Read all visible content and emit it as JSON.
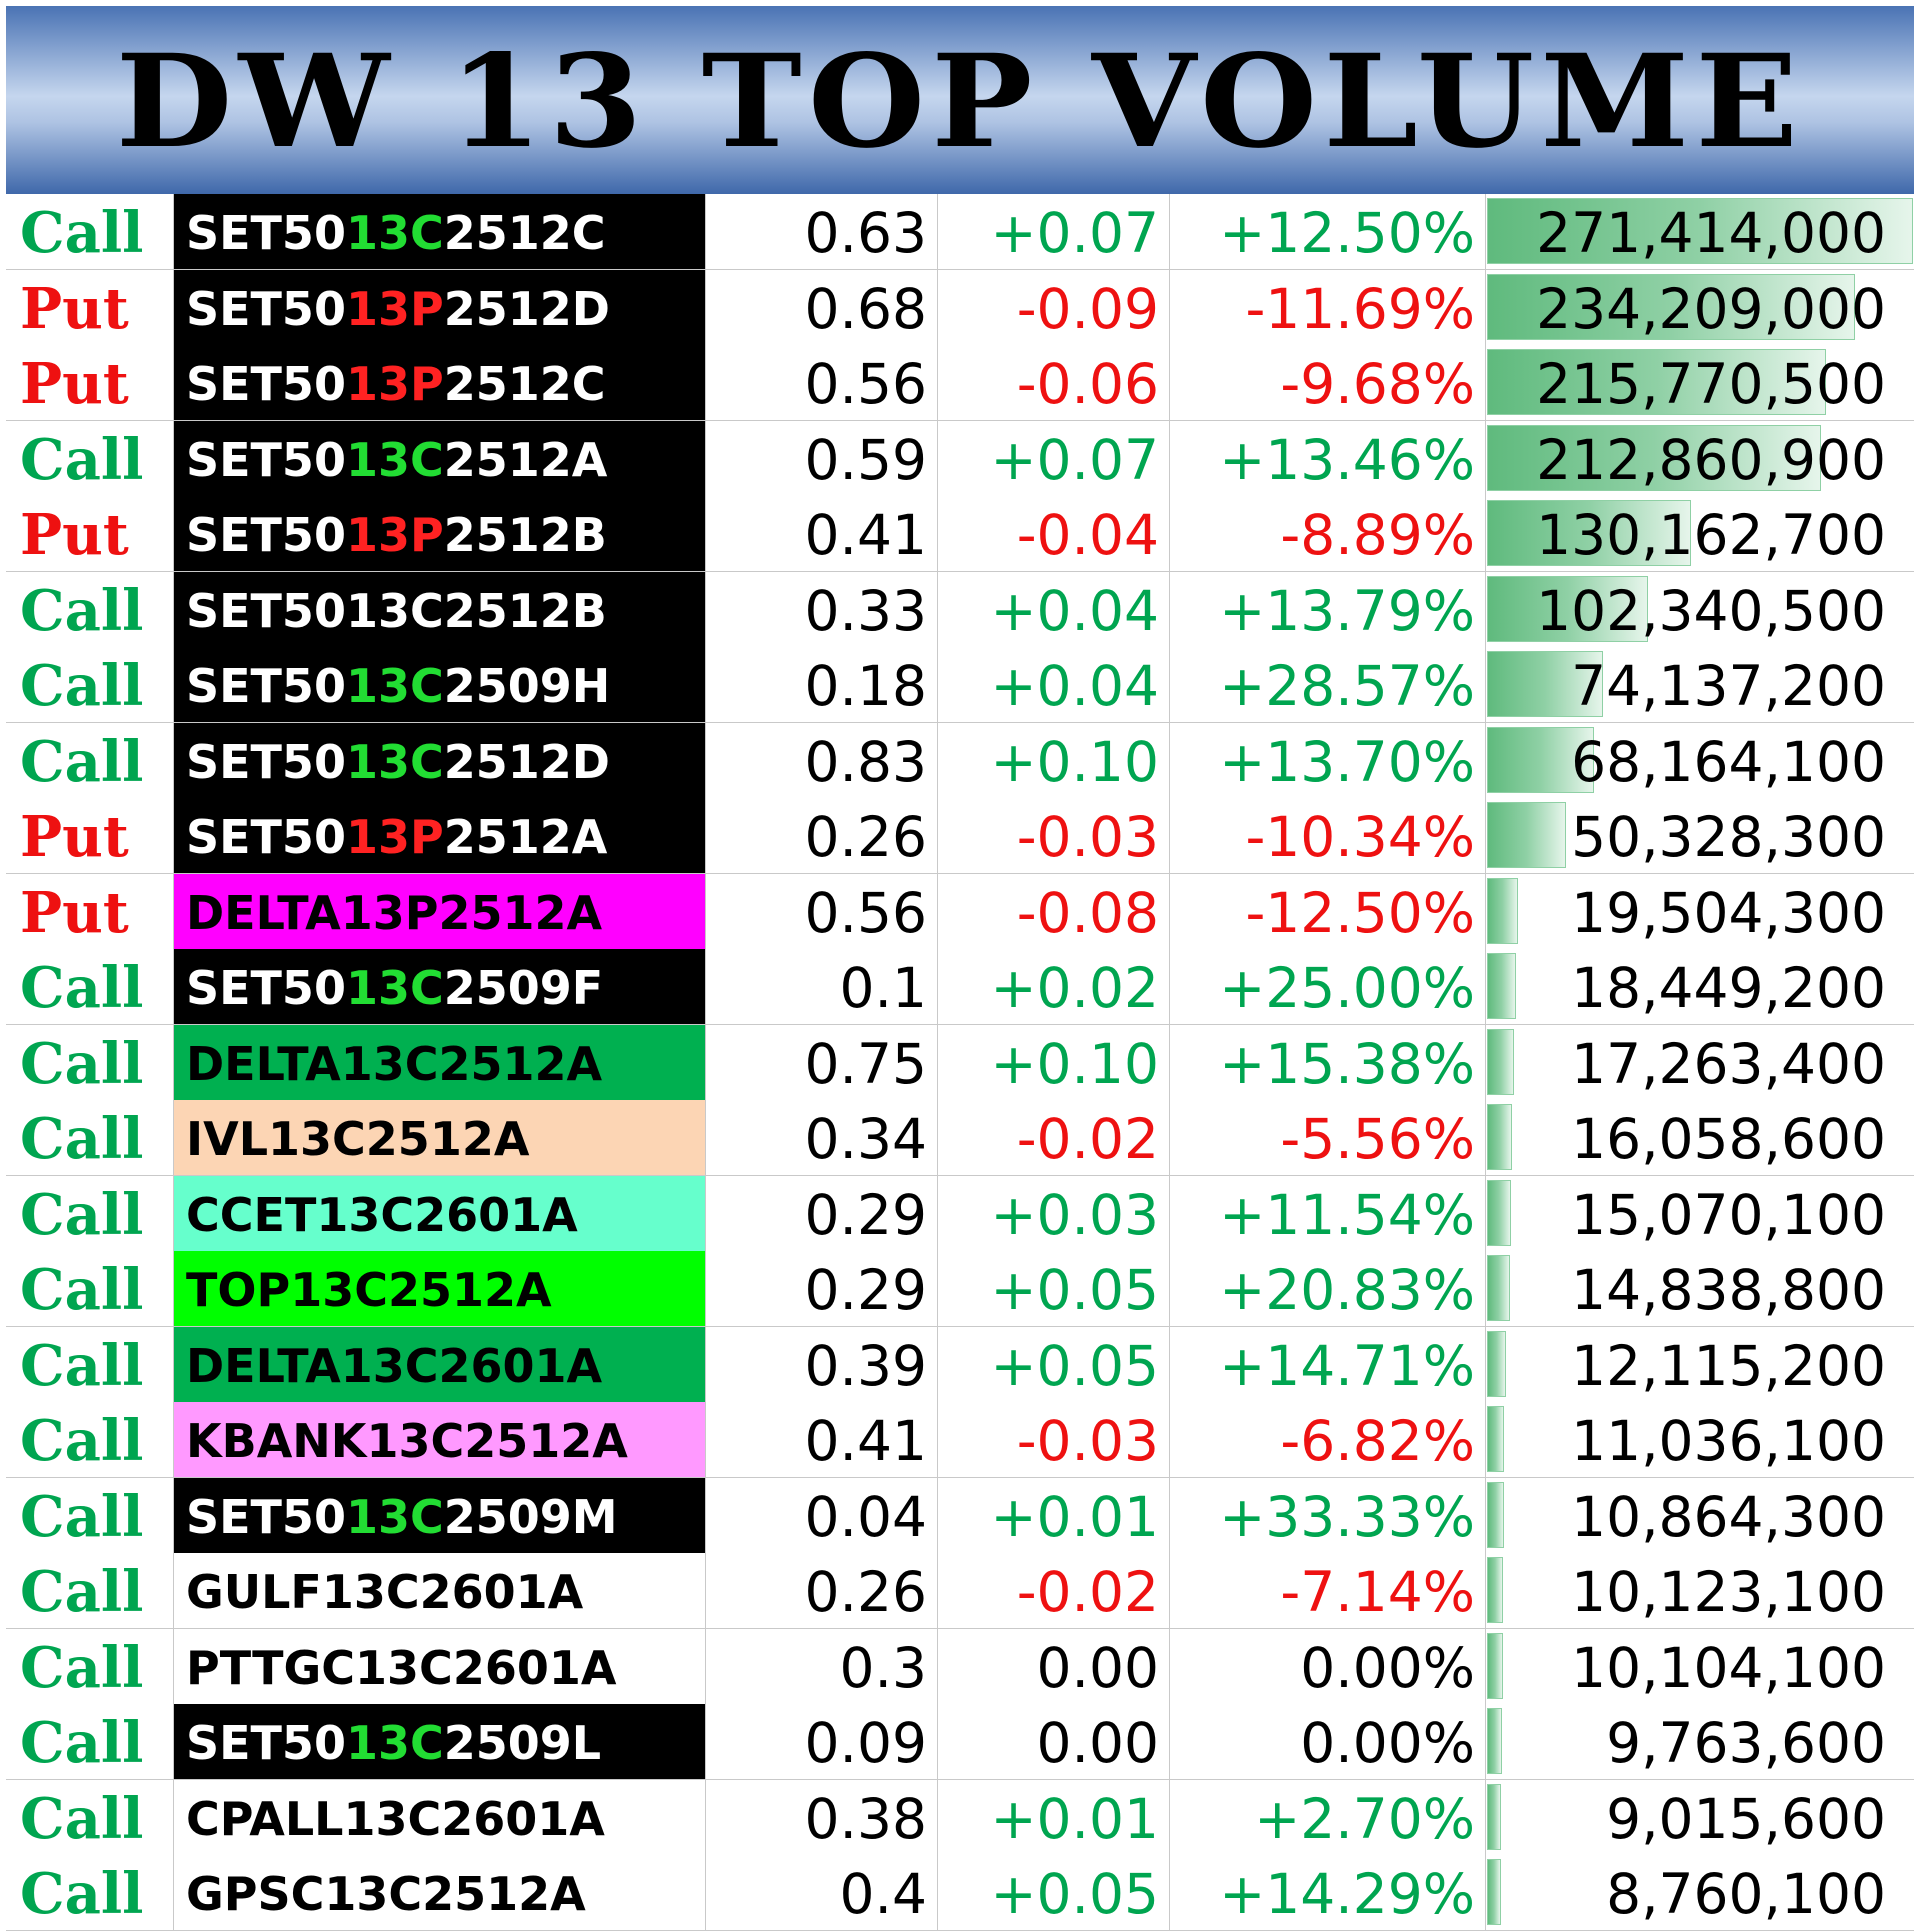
{
  "header": {
    "title": "DW 13 TOP VOLUME"
  },
  "colors": {
    "call": "#00a550",
    "put": "#ee1111",
    "positive": "#00a550",
    "negative": "#ee1111",
    "neutral": "#000000",
    "ticker_highlight_call": "#22dd33",
    "ticker_highlight_put": "#ff2222"
  },
  "rows": [
    {
      "type": "Call",
      "name_pre": "SET50",
      "name_mid": "13C",
      "name_post": "2512C",
      "name_bg": "#000000",
      "name_color": "#ffffff",
      "mid_color": "#22dd33",
      "price": "0.63",
      "change": "+0.07",
      "pct": "+12.50%",
      "dir": "pos",
      "volume": "271,414,000",
      "vol": 271414000
    },
    {
      "type": "Put",
      "name_pre": "SET50",
      "name_mid": "13P",
      "name_post": "2512D",
      "name_bg": "#000000",
      "name_color": "#ffffff",
      "mid_color": "#ff2222",
      "price": "0.68",
      "change": "-0.09",
      "pct": "-11.69%",
      "dir": "neg",
      "volume": "234,209,000",
      "vol": 234209000
    },
    {
      "type": "Put",
      "name_pre": "SET50",
      "name_mid": "13P",
      "name_post": "2512C",
      "name_bg": "#000000",
      "name_color": "#ffffff",
      "mid_color": "#ff2222",
      "price": "0.56",
      "change": "-0.06",
      "pct": "-9.68%",
      "dir": "neg",
      "volume": "215,770,500",
      "vol": 215770500
    },
    {
      "type": "Call",
      "name_pre": "SET50",
      "name_mid": "13C",
      "name_post": "2512A",
      "name_bg": "#000000",
      "name_color": "#ffffff",
      "mid_color": "#22dd33",
      "price": "0.59",
      "change": "+0.07",
      "pct": "+13.46%",
      "dir": "pos",
      "volume": "212,860,900",
      "vol": 212860900
    },
    {
      "type": "Put",
      "name_pre": "SET50",
      "name_mid": "13P",
      "name_post": "2512B",
      "name_bg": "#000000",
      "name_color": "#ffffff",
      "mid_color": "#ff2222",
      "price": "0.41",
      "change": "-0.04",
      "pct": "-8.89%",
      "dir": "neg",
      "volume": "130,162,700",
      "vol": 130162700
    },
    {
      "type": "Call",
      "name_pre": "SET5013C2512B",
      "name_mid": "",
      "name_post": "",
      "name_bg": "#000000",
      "name_color": "#ffffff",
      "mid_color": "#ffffff",
      "price": "0.33",
      "change": "+0.04",
      "pct": "+13.79%",
      "dir": "pos",
      "volume": "102,340,500",
      "vol": 102340500
    },
    {
      "type": "Call",
      "name_pre": "SET50",
      "name_mid": "13C",
      "name_post": "2509H",
      "name_bg": "#000000",
      "name_color": "#ffffff",
      "mid_color": "#22dd33",
      "price": "0.18",
      "change": "+0.04",
      "pct": "+28.57%",
      "dir": "pos",
      "volume": "74,137,200",
      "vol": 74137200
    },
    {
      "type": "Call",
      "name_pre": "SET50",
      "name_mid": "13C",
      "name_post": "2512D",
      "name_bg": "#000000",
      "name_color": "#ffffff",
      "mid_color": "#22dd33",
      "price": "0.83",
      "change": "+0.10",
      "pct": "+13.70%",
      "dir": "pos",
      "volume": "68,164,100",
      "vol": 68164100
    },
    {
      "type": "Put",
      "name_pre": "SET50",
      "name_mid": "13P",
      "name_post": "2512A",
      "name_bg": "#000000",
      "name_color": "#ffffff",
      "mid_color": "#ff2222",
      "price": "0.26",
      "change": "-0.03",
      "pct": "-10.34%",
      "dir": "neg",
      "volume": "50,328,300",
      "vol": 50328300
    },
    {
      "type": "Put",
      "name_pre": "DELTA13P2512A",
      "name_mid": "",
      "name_post": "",
      "name_bg": "#ff00ff",
      "name_color": "#000000",
      "mid_color": "#000000",
      "price": "0.56",
      "change": "-0.08",
      "pct": "-12.50%",
      "dir": "neg",
      "volume": "19,504,300",
      "vol": 19504300
    },
    {
      "type": "Call",
      "name_pre": "SET50",
      "name_mid": "13C",
      "name_post": "2509F",
      "name_bg": "#000000",
      "name_color": "#ffffff",
      "mid_color": "#22dd33",
      "price": "0.1",
      "change": "+0.02",
      "pct": "+25.00%",
      "dir": "pos",
      "volume": "18,449,200",
      "vol": 18449200
    },
    {
      "type": "Call",
      "name_pre": "DELTA13C2512A",
      "name_mid": "",
      "name_post": "",
      "name_bg": "#00b050",
      "name_color": "#000000",
      "mid_color": "#000000",
      "price": "0.75",
      "change": "+0.10",
      "pct": "+15.38%",
      "dir": "pos",
      "volume": "17,263,400",
      "vol": 17263400
    },
    {
      "type": "Call",
      "name_pre": "IVL13C2512A",
      "name_mid": "",
      "name_post": "",
      "name_bg": "#fcd5b4",
      "name_color": "#000000",
      "mid_color": "#000000",
      "price": "0.34",
      "change": "-0.02",
      "pct": "-5.56%",
      "dir": "neg",
      "volume": "16,058,600",
      "vol": 16058600
    },
    {
      "type": "Call",
      "name_pre": "CCET13C2601A",
      "name_mid": "",
      "name_post": "",
      "name_bg": "#66ffcc",
      "name_color": "#000000",
      "mid_color": "#000000",
      "price": "0.29",
      "change": "+0.03",
      "pct": "+11.54%",
      "dir": "pos",
      "volume": "15,070,100",
      "vol": 15070100
    },
    {
      "type": "Call",
      "name_pre": "TOP13C2512A",
      "name_mid": "",
      "name_post": "",
      "name_bg": "#00ff00",
      "name_color": "#000000",
      "mid_color": "#000000",
      "price": "0.29",
      "change": "+0.05",
      "pct": "+20.83%",
      "dir": "pos",
      "volume": "14,838,800",
      "vol": 14838800
    },
    {
      "type": "Call",
      "name_pre": "DELTA13C2601A",
      "name_mid": "",
      "name_post": "",
      "name_bg": "#00b050",
      "name_color": "#000000",
      "mid_color": "#000000",
      "price": "0.39",
      "change": "+0.05",
      "pct": "+14.71%",
      "dir": "pos",
      "volume": "12,115,200",
      "vol": 12115200
    },
    {
      "type": "Call",
      "name_pre": "KBANK13C2512A",
      "name_mid": "",
      "name_post": "",
      "name_bg": "#ff99ff",
      "name_color": "#000000",
      "mid_color": "#000000",
      "price": "0.41",
      "change": "-0.03",
      "pct": "-6.82%",
      "dir": "neg",
      "volume": "11,036,100",
      "vol": 11036100
    },
    {
      "type": "Call",
      "name_pre": "SET50",
      "name_mid": "13C",
      "name_post": "2509M",
      "name_bg": "#000000",
      "name_color": "#ffffff",
      "mid_color": "#22dd33",
      "price": "0.04",
      "change": "+0.01",
      "pct": "+33.33%",
      "dir": "pos",
      "volume": "10,864,300",
      "vol": 10864300
    },
    {
      "type": "Call",
      "name_pre": "GULF13C2601A",
      "name_mid": "",
      "name_post": "",
      "name_bg": "#ffffff",
      "name_color": "#000000",
      "mid_color": "#000000",
      "price": "0.26",
      "change": "-0.02",
      "pct": "-7.14%",
      "dir": "neg",
      "volume": "10,123,100",
      "vol": 10123100
    },
    {
      "type": "Call",
      "name_pre": "PTTGC13C2601A",
      "name_mid": "",
      "name_post": "",
      "name_bg": "#ffffff",
      "name_color": "#000000",
      "mid_color": "#000000",
      "price": "0.3",
      "change": "0.00",
      "pct": "0.00%",
      "dir": "zero",
      "volume": "10,104,100",
      "vol": 10104100
    },
    {
      "type": "Call",
      "name_pre": "SET50",
      "name_mid": "13C",
      "name_post": "2509L",
      "name_bg": "#000000",
      "name_color": "#ffffff",
      "mid_color": "#22dd33",
      "price": "0.09",
      "change": "0.00",
      "pct": "0.00%",
      "dir": "zero",
      "volume": "9,763,600",
      "vol": 9763600
    },
    {
      "type": "Call",
      "name_pre": "CPALL13C2601A",
      "name_mid": "",
      "name_post": "",
      "name_bg": "#ffffff",
      "name_color": "#000000",
      "mid_color": "#000000",
      "price": "0.38",
      "change": "+0.01",
      "pct": "+2.70%",
      "dir": "pos",
      "volume": "9,015,600",
      "vol": 9015600
    },
    {
      "type": "Call",
      "name_pre": "GPSC13C2512A",
      "name_mid": "",
      "name_post": "",
      "name_bg": "#ffffff",
      "name_color": "#000000",
      "mid_color": "#000000",
      "price": "0.4",
      "change": "+0.05",
      "pct": "+14.29%",
      "dir": "pos",
      "volume": "8,760,100",
      "vol": 8760100
    }
  ]
}
